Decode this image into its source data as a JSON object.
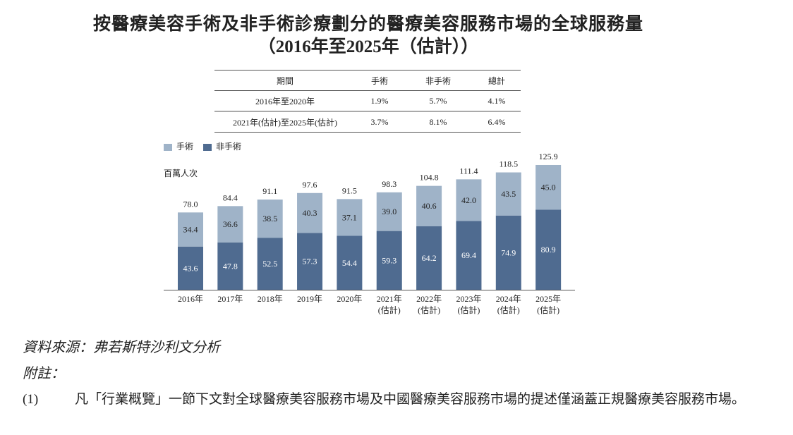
{
  "title": "按醫療美容手術及非手術診療劃分的醫療美容服務市場的全球服務量",
  "subtitle": "（2016年至2025年（估計））",
  "cagr_table": {
    "headers": [
      "期間",
      "手術",
      "非手術",
      "總計"
    ],
    "rows": [
      [
        "2016年至2020年",
        "1.9%",
        "5.7%",
        "4.1%"
      ],
      [
        "2021年(估計)至2025年(估計)",
        "3.7%",
        "8.1%",
        "6.4%"
      ]
    ]
  },
  "chart_data": {
    "type": "bar",
    "stacked": true,
    "ylabel": "百萬人次",
    "categories": [
      "2016年",
      "2017年",
      "2018年",
      "2019年",
      "2020年",
      "2021年\n(估計)",
      "2022年\n(估計)",
      "2023年\n(估計)",
      "2024年\n(估計)",
      "2025年\n(估計)"
    ],
    "series": [
      {
        "name": "非手術",
        "color": "#4f6b90",
        "values": [
          43.6,
          47.8,
          52.5,
          57.3,
          54.4,
          59.3,
          64.2,
          69.4,
          74.9,
          80.9
        ]
      },
      {
        "name": "手術",
        "color": "#9fb3c8",
        "values": [
          34.4,
          36.6,
          38.5,
          40.3,
          37.1,
          39.0,
          40.6,
          42.0,
          43.5,
          45.0
        ]
      }
    ],
    "totals": [
      "78.0",
      "84.4",
      "91.1",
      "97.6",
      "91.5",
      "98.3",
      "104.8",
      "111.4",
      "118.5",
      "125.9"
    ],
    "legend": [
      "手術",
      "非手術"
    ],
    "legend_position": "top-left",
    "grid": false
  },
  "source": "資料來源：弗若斯特沙利文分析",
  "note_heading": "附註：",
  "note_number": "(1)",
  "note_text": "凡「行業概覽」一節下文對全球醫療美容服務市場及中國醫療美容服務市場的提述僅涵蓋正規醫療美容服務市場。"
}
